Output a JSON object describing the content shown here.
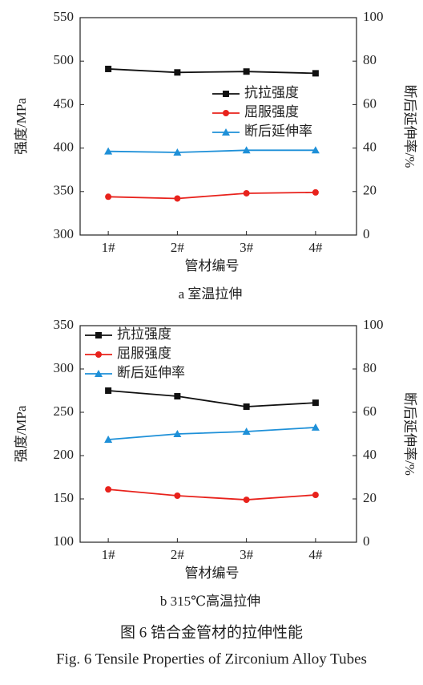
{
  "chart_data": [
    {
      "type": "line",
      "caption": "a  室温拉伸",
      "y_label": "强度/MPa",
      "y2_label": "断后延伸率/%",
      "x_label": "管材编号",
      "categories": [
        "1#",
        "2#",
        "3#",
        "4#"
      ],
      "ylim": [
        300,
        550
      ],
      "yticks": [
        300,
        350,
        400,
        450,
        500,
        550
      ],
      "y2lim": [
        0,
        100
      ],
      "y2ticks": [
        0,
        20,
        40,
        60,
        80,
        100
      ],
      "legend": "center-right",
      "series": [
        {
          "name": "抗拉强度",
          "color": "#111111",
          "marker": "square",
          "values": [
            491,
            487,
            488,
            486
          ]
        },
        {
          "name": "屈服强度",
          "color": "#e8221c",
          "marker": "circle",
          "values": [
            344,
            342,
            348,
            349
          ]
        },
        {
          "name": "断后延伸率",
          "color": "#1e90d8",
          "marker": "triangle",
          "axis": "y2",
          "values": [
            38.5,
            38,
            39,
            39
          ]
        }
      ]
    },
    {
      "type": "line",
      "caption": "b  315℃高温拉伸",
      "y_label": "强度/MPa",
      "y2_label": "断后延伸率/%",
      "x_label": "管材编号",
      "categories": [
        "1#",
        "2#",
        "3#",
        "4#"
      ],
      "ylim": [
        100,
        350
      ],
      "yticks": [
        100,
        150,
        200,
        250,
        300,
        350
      ],
      "y2lim": [
        0,
        100
      ],
      "y2ticks": [
        0,
        20,
        40,
        60,
        80,
        100
      ],
      "legend": "upper-left",
      "series": [
        {
          "name": "抗拉强度",
          "color": "#111111",
          "marker": "square",
          "values": [
            275,
            268.5,
            256.5,
            261
          ]
        },
        {
          "name": "屈服强度",
          "color": "#e8221c",
          "marker": "circle",
          "values": [
            161,
            153.7,
            149,
            154.6
          ]
        },
        {
          "name": "断后延伸率",
          "color": "#1e90d8",
          "marker": "triangle",
          "axis": "y2",
          "values": [
            47.4,
            50,
            51.1,
            53
          ]
        }
      ]
    }
  ],
  "figure": {
    "caption_zh": "图 6  锆合金管材的拉伸性能",
    "caption_en": "Fig. 6  Tensile Properties of Zirconium Alloy Tubes"
  }
}
